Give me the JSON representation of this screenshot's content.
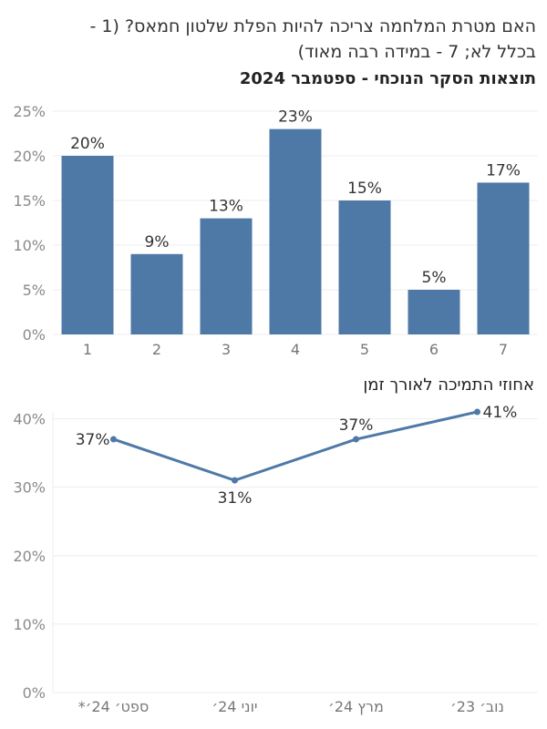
{
  "question": {
    "line1": "האם מטרת המלחמה צריכה להיות הפלת שלטון חמאס? (1 -",
    "line2": "בכלל לא; 7 - במידה רבה מאוד)"
  },
  "colors": {
    "accent": "#4e79a7",
    "grid": "#eeeeee",
    "text": "#333333"
  },
  "chart_data": [
    {
      "type": "bar",
      "title": "תוצאות הסקר הנוכחי - ספטמבר 2024",
      "categories": [
        "1",
        "2",
        "3",
        "4",
        "5",
        "6",
        "7"
      ],
      "values": [
        20,
        9,
        13,
        23,
        15,
        5,
        17
      ],
      "value_labels": [
        "20%",
        "9%",
        "13%",
        "23%",
        "15%",
        "5%",
        "17%"
      ],
      "yticks": [
        "0%",
        "5%",
        "10%",
        "15%",
        "20%",
        "25%"
      ],
      "ylim": [
        0,
        25
      ],
      "xlabel": "",
      "ylabel": "",
      "grid": true,
      "color": "#4e79a7"
    },
    {
      "type": "line",
      "title": "אחוזי התמיכה לאורך זמן",
      "categories": [
        "ספט׳ 24׳*",
        "יוני 24׳",
        "מרץ 24׳",
        "נוב׳ 23׳"
      ],
      "values": [
        37,
        31,
        37,
        41
      ],
      "value_labels": [
        "37%",
        "31%",
        "37%",
        "41%"
      ],
      "yticks": [
        "0%",
        "10%",
        "20%",
        "30%",
        "40%"
      ],
      "ylim": [
        0,
        41
      ],
      "xlabel": "",
      "ylabel": "",
      "grid": true,
      "color": "#4e79a7"
    }
  ]
}
